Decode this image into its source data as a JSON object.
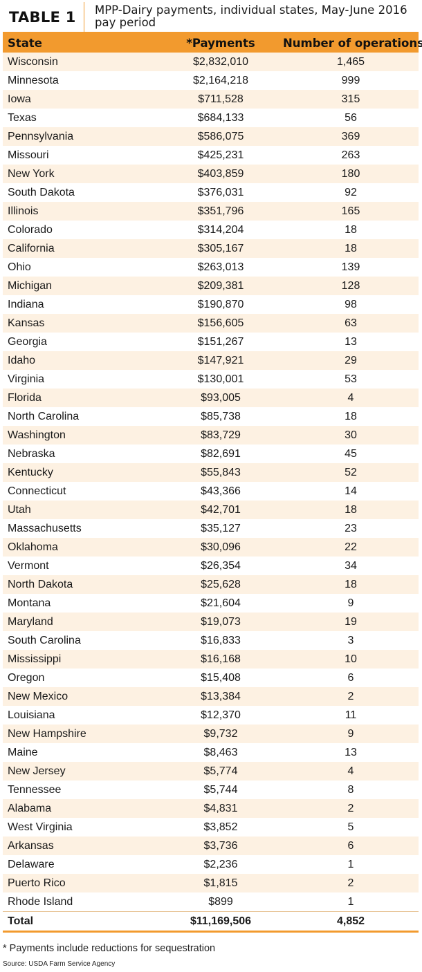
{
  "table_label": "TABLE 1",
  "title": "MPP-Dairy payments, individual states, May-June 2016 pay period",
  "columns": {
    "state": "State",
    "payments": "*Payments",
    "operations": "Number of operations"
  },
  "rows": [
    {
      "state": "Wisconsin",
      "payments": "$2,832,010",
      "operations": "1,465"
    },
    {
      "state": "Minnesota",
      "payments": "$2,164,218",
      "operations": "999"
    },
    {
      "state": "Iowa",
      "payments": "$711,528",
      "operations": "315"
    },
    {
      "state": "Texas",
      "payments": "$684,133",
      "operations": "56"
    },
    {
      "state": "Pennsylvania",
      "payments": "$586,075",
      "operations": "369"
    },
    {
      "state": "Missouri",
      "payments": "$425,231",
      "operations": "263"
    },
    {
      "state": "New York",
      "payments": "$403,859",
      "operations": "180"
    },
    {
      "state": "South Dakota",
      "payments": "$376,031",
      "operations": "92"
    },
    {
      "state": "Illinois",
      "payments": "$351,796",
      "operations": "165"
    },
    {
      "state": "Colorado",
      "payments": "$314,204",
      "operations": "18"
    },
    {
      "state": "California",
      "payments": "$305,167",
      "operations": "18"
    },
    {
      "state": "Ohio",
      "payments": "$263,013",
      "operations": "139"
    },
    {
      "state": "Michigan",
      "payments": "$209,381",
      "operations": "128"
    },
    {
      "state": "Indiana",
      "payments": "$190,870",
      "operations": "98"
    },
    {
      "state": "Kansas",
      "payments": "$156,605",
      "operations": "63"
    },
    {
      "state": "Georgia",
      "payments": "$151,267",
      "operations": "13"
    },
    {
      "state": "Idaho",
      "payments": "$147,921",
      "operations": "29"
    },
    {
      "state": "Virginia",
      "payments": "$130,001",
      "operations": "53"
    },
    {
      "state": "Florida",
      "payments": "$93,005",
      "operations": "4"
    },
    {
      "state": "North Carolina",
      "payments": "$85,738",
      "operations": "18"
    },
    {
      "state": "Washington",
      "payments": "$83,729",
      "operations": "30"
    },
    {
      "state": "Nebraska",
      "payments": "$82,691",
      "operations": "45"
    },
    {
      "state": "Kentucky",
      "payments": "$55,843",
      "operations": "52"
    },
    {
      "state": "Connecticut",
      "payments": "$43,366",
      "operations": "14"
    },
    {
      "state": "Utah",
      "payments": "$42,701",
      "operations": "18"
    },
    {
      "state": "Massachusetts",
      "payments": "$35,127",
      "operations": "23"
    },
    {
      "state": "Oklahoma",
      "payments": "$30,096",
      "operations": "22"
    },
    {
      "state": "Vermont",
      "payments": "$26,354",
      "operations": "34"
    },
    {
      "state": "North Dakota",
      "payments": "$25,628",
      "operations": "18"
    },
    {
      "state": "Montana",
      "payments": "$21,604",
      "operations": "9"
    },
    {
      "state": "Maryland",
      "payments": "$19,073",
      "operations": "19"
    },
    {
      "state": "South Carolina",
      "payments": "$16,833",
      "operations": "3"
    },
    {
      "state": "Mississippi",
      "payments": "$16,168",
      "operations": "10"
    },
    {
      "state": "Oregon",
      "payments": "$15,408",
      "operations": "6"
    },
    {
      "state": "New Mexico",
      "payments": "$13,384",
      "operations": "2"
    },
    {
      "state": "Louisiana",
      "payments": "$12,370",
      "operations": "11"
    },
    {
      "state": "New Hampshire",
      "payments": "$9,732",
      "operations": "9"
    },
    {
      "state": "Maine",
      "payments": "$8,463",
      "operations": "13"
    },
    {
      "state": "New Jersey",
      "payments": "$5,774",
      "operations": "4"
    },
    {
      "state": "Tennessee",
      "payments": "$5,744",
      "operations": "8"
    },
    {
      "state": "Alabama",
      "payments": "$4,831",
      "operations": "2"
    },
    {
      "state": "West Virginia",
      "payments": "$3,852",
      "operations": "5"
    },
    {
      "state": "Arkansas",
      "payments": "$3,736",
      "operations": "6"
    },
    {
      "state": "Delaware",
      "payments": "$2,236",
      "operations": "1"
    },
    {
      "state": "Puerto Rico",
      "payments": "$1,815",
      "operations": "2"
    },
    {
      "state": "Rhode Island",
      "payments": "$899",
      "operations": "1"
    }
  ],
  "total": {
    "state": "Total",
    "payments": "$11,169,506",
    "operations": "4,852"
  },
  "footnote": "* Payments include reductions for sequestration",
  "source": "Source: USDA Farm Service Agency",
  "colors": {
    "accent": "#f29a2e",
    "row_tint": "#fdf1e2"
  }
}
